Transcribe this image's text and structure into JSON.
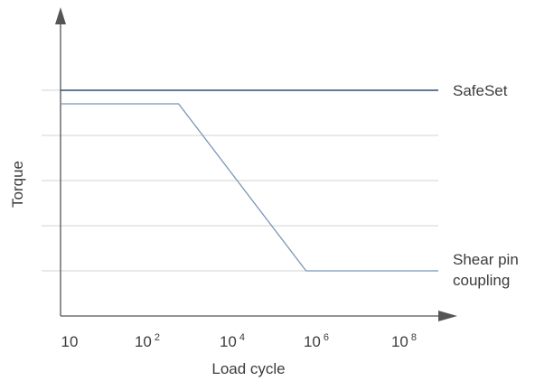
{
  "chart_data": {
    "type": "line",
    "title": "",
    "xlabel": "Load cycle",
    "ylabel": "Torque",
    "x_scale": "log",
    "x_ticks": [
      {
        "base": "10",
        "exp": ""
      },
      {
        "base": "10",
        "exp": "2"
      },
      {
        "base": "10",
        "exp": "4"
      },
      {
        "base": "10",
        "exp": "6"
      },
      {
        "base": "10",
        "exp": "8"
      }
    ],
    "xlim": [
      1,
      9
    ],
    "ylim": [
      0,
      5
    ],
    "grid": true,
    "series": [
      {
        "name": "SafeSet",
        "color": "#2c4f7c",
        "x": [
          1,
          9
        ],
        "y": [
          5,
          5
        ]
      },
      {
        "name_lines": [
          "Shear pin",
          "coupling"
        ],
        "color": "#7b95b8",
        "x": [
          1,
          3.5,
          6.2,
          9
        ],
        "y": [
          4.7,
          4.7,
          1.0,
          1.0
        ]
      }
    ]
  }
}
